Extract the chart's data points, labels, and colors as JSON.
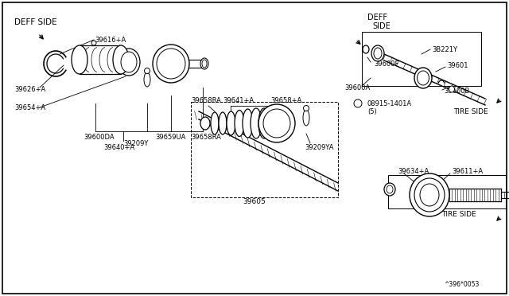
{
  "bg_color": "#ffffff",
  "border_color": "#000000",
  "diagram_ref": "^396*0053",
  "labels": {
    "deff_side_left": "DEFF SIDE",
    "deff_side_right_1": "DEFF",
    "deff_side_right_2": "SIDE",
    "tire_side_top": "TIRE SIDE",
    "tire_side_bottom": "TIRE SIDE",
    "p39616": "39616+A",
    "p39626": "39626+A",
    "p39654": "39654+A",
    "p39600DA": "39600DA",
    "p39209Y": "39209Y",
    "p39659UA": "39659UA",
    "p39640": "39640+A",
    "p39641": "39641+A",
    "p39658RA_a": "39658RA",
    "p39658A": "39658+A",
    "p39209YA": "39209YA",
    "p39658RA_b": "39658RA",
    "p39605": "39605",
    "p39600F": "39600F",
    "p3B221Y": "3B221Y",
    "p39601": "39601",
    "p39600A": "39600A",
    "p39600B": "39600B",
    "p08915": "08915-1401A",
    "p5": "(5)",
    "p39634": "39634+A",
    "p39611": "39611+A"
  }
}
